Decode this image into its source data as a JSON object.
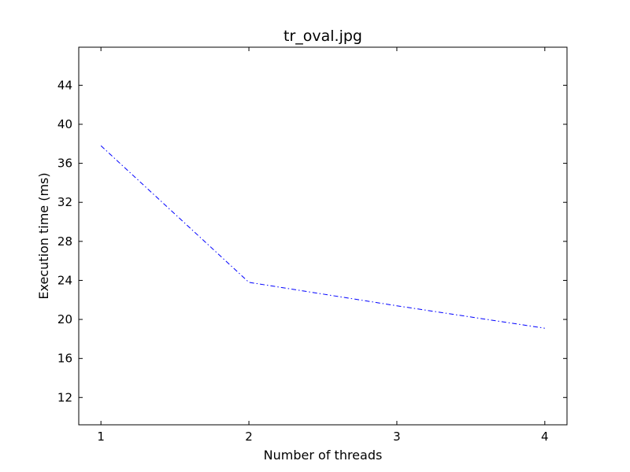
{
  "chart_data": {
    "type": "line",
    "title": "tr_oval.jpg",
    "xlabel": "Number of threads",
    "ylabel": "Execution time (ms)",
    "x": [
      1,
      2,
      3,
      4
    ],
    "series": [
      {
        "values": [
          37.8,
          23.8,
          21.4,
          19.1
        ],
        "color": "#0000ff",
        "linestyle": "dash-dot"
      }
    ],
    "xticks": [
      "1",
      "2",
      "3",
      "4"
    ],
    "yticks": [
      "12",
      "16",
      "20",
      "24",
      "28",
      "32",
      "36",
      "40",
      "44"
    ],
    "xlim": [
      0.85,
      4.15
    ],
    "ylim": [
      9.2,
      47.9
    ],
    "grid": false
  }
}
